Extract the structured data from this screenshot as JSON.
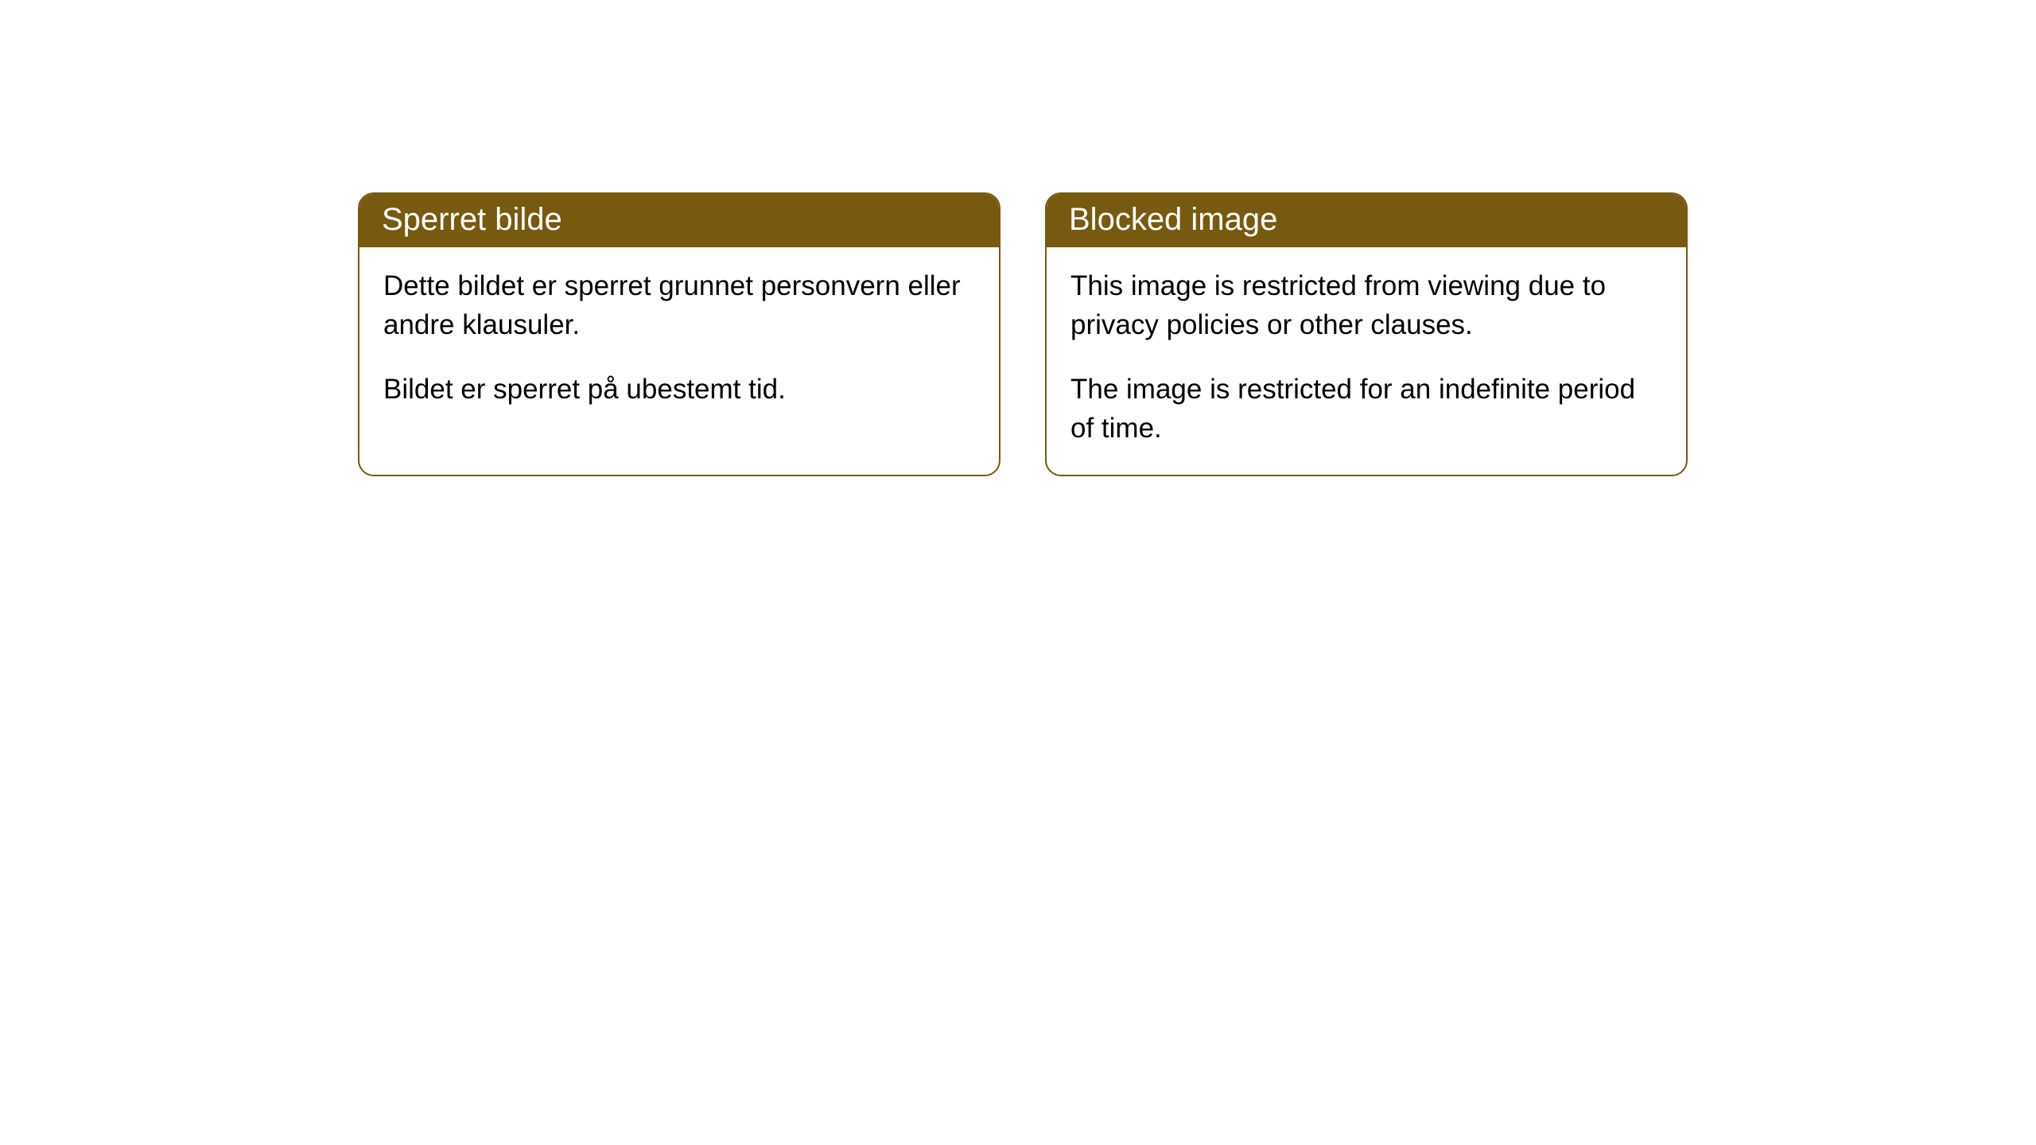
{
  "cards": [
    {
      "title": "Sperret bilde",
      "paragraph1": "Dette bildet er sperret grunnet personvern eller andre klausuler.",
      "paragraph2": "Bildet er sperret på ubestemt tid."
    },
    {
      "title": "Blocked image",
      "paragraph1": "This image is restricted from viewing due to privacy policies or other clauses.",
      "paragraph2": "The image is restricted for an indefinite period of time."
    }
  ],
  "styling": {
    "header_background": "#785910",
    "header_text_color": "#ffffff",
    "border_color": "#785910",
    "body_text_color": "#000000",
    "page_background": "#ffffff",
    "border_radius": 20,
    "header_fontsize": 40,
    "body_fontsize": 35
  }
}
